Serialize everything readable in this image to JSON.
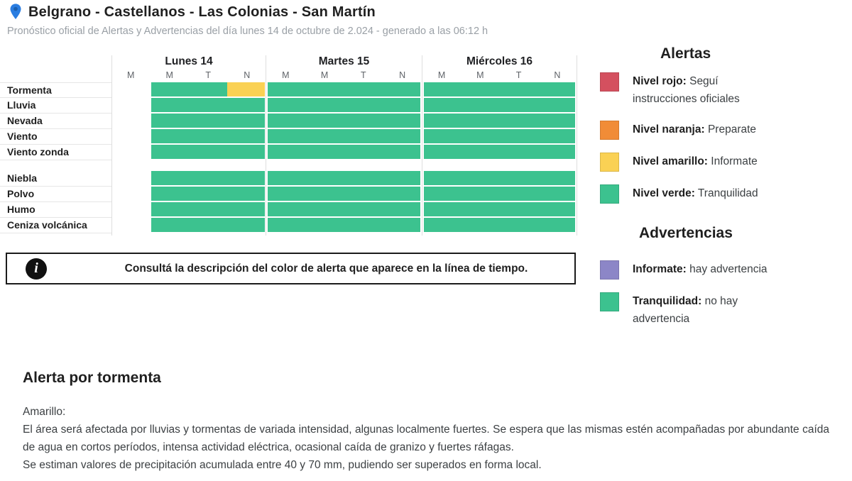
{
  "header": {
    "title": "Belgrano - Castellanos - Las Colonias - San Martín",
    "subtitle": "Pronóstico oficial de Alertas y Advertencias del día lunes 14 de octubre de 2.024 - generado a las 06:12 h"
  },
  "chart_data": {
    "type": "heatmap",
    "days": [
      {
        "label": "Lunes 14",
        "periods": [
          "M",
          "M",
          "T",
          "N"
        ]
      },
      {
        "label": "Martes 15",
        "periods": [
          "M",
          "M",
          "T",
          "N"
        ]
      },
      {
        "label": "Miércoles 16",
        "periods": [
          "M",
          "M",
          "T",
          "N"
        ]
      }
    ],
    "legend_colors": {
      "green": "#3cc28f",
      "yellow": "#fad154",
      "none": "transparent"
    },
    "row_groups": [
      {
        "rows": [
          {
            "label": "Tormenta",
            "cells": [
              [
                "none",
                "green",
                "green",
                "yellow"
              ],
              [
                "green",
                "green",
                "green",
                "green"
              ],
              [
                "green",
                "green",
                "green",
                "green"
              ]
            ]
          },
          {
            "label": "Lluvia",
            "cells": [
              [
                "none",
                "green",
                "green",
                "green"
              ],
              [
                "green",
                "green",
                "green",
                "green"
              ],
              [
                "green",
                "green",
                "green",
                "green"
              ]
            ]
          },
          {
            "label": "Nevada",
            "cells": [
              [
                "none",
                "green",
                "green",
                "green"
              ],
              [
                "green",
                "green",
                "green",
                "green"
              ],
              [
                "green",
                "green",
                "green",
                "green"
              ]
            ]
          },
          {
            "label": "Viento",
            "cells": [
              [
                "none",
                "green",
                "green",
                "green"
              ],
              [
                "green",
                "green",
                "green",
                "green"
              ],
              [
                "green",
                "green",
                "green",
                "green"
              ]
            ]
          },
          {
            "label": "Viento zonda",
            "cells": [
              [
                "none",
                "green",
                "green",
                "green"
              ],
              [
                "green",
                "green",
                "green",
                "green"
              ],
              [
                "green",
                "green",
                "green",
                "green"
              ]
            ]
          }
        ]
      },
      {
        "rows": [
          {
            "label": "Niebla",
            "cells": [
              [
                "none",
                "green",
                "green",
                "green"
              ],
              [
                "green",
                "green",
                "green",
                "green"
              ],
              [
                "green",
                "green",
                "green",
                "green"
              ]
            ]
          },
          {
            "label": "Polvo",
            "cells": [
              [
                "none",
                "green",
                "green",
                "green"
              ],
              [
                "green",
                "green",
                "green",
                "green"
              ],
              [
                "green",
                "green",
                "green",
                "green"
              ]
            ]
          },
          {
            "label": "Humo",
            "cells": [
              [
                "none",
                "green",
                "green",
                "green"
              ],
              [
                "green",
                "green",
                "green",
                "green"
              ],
              [
                "green",
                "green",
                "green",
                "green"
              ]
            ]
          },
          {
            "label": "Ceniza volcánica",
            "cells": [
              [
                "none",
                "green",
                "green",
                "green"
              ],
              [
                "green",
                "green",
                "green",
                "green"
              ],
              [
                "green",
                "green",
                "green",
                "green"
              ]
            ]
          }
        ]
      }
    ]
  },
  "info_box": {
    "icon": "i",
    "text": "Consultá la descripción del color de alerta que aparece en la línea de tiempo."
  },
  "alerts_legend": {
    "title": "Alertas",
    "items": [
      {
        "color": "#d4505f",
        "name": "Nivel rojo:",
        "description": "Seguí instrucciones oficiales"
      },
      {
        "color": "#f18c37",
        "name": "Nivel naranja:",
        "description": "Preparate"
      },
      {
        "color": "#fad154",
        "name": "Nivel amarillo:",
        "description": "Informate"
      },
      {
        "color": "#3cc28f",
        "name": "Nivel verde:",
        "description": "Tranquilidad"
      }
    ]
  },
  "warnings_legend": {
    "title": "Advertencias",
    "items": [
      {
        "color": "#8c86c7",
        "name": "Informate:",
        "description": "hay advertencia"
      },
      {
        "color": "#3cc28f",
        "name": "Tranquilidad:",
        "description": "no hay advertencia"
      }
    ]
  },
  "alert_detail": {
    "title": "Alerta por tormenta",
    "level": "Amarillo:",
    "paragraphs": [
      "El área será afectada por lluvias y tormentas de variada intensidad, algunas localmente fuertes. Se espera que las mismas estén acompañadas por abundante caída de agua en cortos períodos, intensa actividad eléctrica, ocasional caída de granizo y fuertes ráfagas.",
      "Se estiman valores de precipitación acumulada entre 40 y 70 mm, pudiendo ser superados en forma local."
    ]
  },
  "colors": {
    "pin_blue": "#2a7de1",
    "pin_blue_dark": "#1b5fae",
    "grid_line": "#dedede"
  }
}
